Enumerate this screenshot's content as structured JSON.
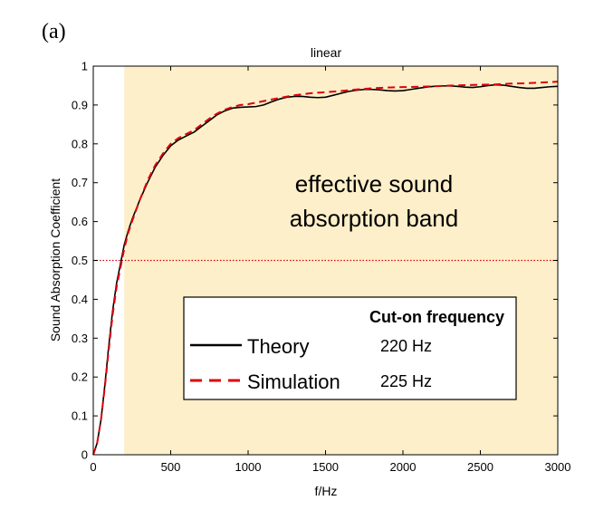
{
  "panel_label": "(a)",
  "chart_data": {
    "type": "line",
    "title": "linear",
    "xlabel": "f/Hz",
    "ylabel": "Sound Absorption Coefficient",
    "xlim": [
      0,
      3000
    ],
    "ylim": [
      0,
      1
    ],
    "xticks": [
      0,
      500,
      1000,
      1500,
      2000,
      2500,
      3000
    ],
    "yticks": [
      0,
      0.1,
      0.2,
      0.3,
      0.4,
      0.5,
      0.6,
      0.7,
      0.8,
      0.9,
      1
    ],
    "grid": false,
    "shaded_region": {
      "x_start": 200,
      "x_end": 3000,
      "color": "#fdefc9"
    },
    "threshold": {
      "y": 0.5,
      "color": "#e0000c",
      "style": "dotted"
    },
    "annotation": {
      "line1": "effective sound",
      "line2": "absorption band"
    },
    "legend": {
      "title": "Cut-on frequency",
      "placement": "lower-right"
    },
    "series": [
      {
        "name": "Theory",
        "cutoff": "220 Hz",
        "color": "#000000",
        "style": "solid",
        "x": [
          0,
          25,
          50,
          75,
          100,
          125,
          150,
          175,
          200,
          225,
          250,
          300,
          350,
          400,
          450,
          500,
          550,
          600,
          650,
          700,
          750,
          800,
          850,
          900,
          950,
          1000,
          1050,
          1100,
          1150,
          1200,
          1250,
          1300,
          1350,
          1400,
          1450,
          1500,
          1550,
          1600,
          1650,
          1700,
          1750,
          1800,
          1850,
          1900,
          1950,
          2000,
          2050,
          2100,
          2150,
          2200,
          2250,
          2300,
          2350,
          2400,
          2450,
          2500,
          2550,
          2600,
          2650,
          2700,
          2750,
          2800,
          2850,
          2900,
          2950,
          3000
        ],
        "y": [
          0,
          0.03,
          0.09,
          0.18,
          0.28,
          0.37,
          0.44,
          0.49,
          0.54,
          0.575,
          0.605,
          0.655,
          0.7,
          0.74,
          0.77,
          0.795,
          0.81,
          0.82,
          0.83,
          0.845,
          0.86,
          0.875,
          0.885,
          0.892,
          0.894,
          0.895,
          0.896,
          0.9,
          0.908,
          0.915,
          0.92,
          0.922,
          0.922,
          0.92,
          0.919,
          0.92,
          0.925,
          0.93,
          0.935,
          0.938,
          0.94,
          0.94,
          0.939,
          0.937,
          0.936,
          0.937,
          0.94,
          0.943,
          0.946,
          0.948,
          0.949,
          0.949,
          0.948,
          0.946,
          0.945,
          0.947,
          0.95,
          0.952,
          0.951,
          0.948,
          0.945,
          0.943,
          0.943,
          0.945,
          0.947,
          0.948
        ]
      },
      {
        "name": "Simulation",
        "cutoff": "225 Hz",
        "color": "#e0000c",
        "style": "dashed",
        "x": [
          0,
          25,
          50,
          75,
          100,
          125,
          150,
          175,
          200,
          225,
          250,
          300,
          350,
          400,
          450,
          500,
          550,
          600,
          650,
          700,
          750,
          800,
          850,
          900,
          950,
          1000,
          1100,
          1200,
          1300,
          1400,
          1500,
          1600,
          1700,
          1800,
          1900,
          2000,
          2100,
          2200,
          2300,
          2400,
          2500,
          2600,
          2700,
          2800,
          2900,
          3000
        ],
        "y": [
          0,
          0.03,
          0.09,
          0.175,
          0.27,
          0.36,
          0.43,
          0.48,
          0.53,
          0.57,
          0.6,
          0.655,
          0.705,
          0.745,
          0.775,
          0.8,
          0.815,
          0.825,
          0.835,
          0.85,
          0.865,
          0.878,
          0.888,
          0.895,
          0.9,
          0.902,
          0.91,
          0.918,
          0.925,
          0.93,
          0.933,
          0.936,
          0.94,
          0.943,
          0.945,
          0.946,
          0.947,
          0.948,
          0.95,
          0.951,
          0.952,
          0.953,
          0.955,
          0.956,
          0.958,
          0.96
        ]
      }
    ]
  }
}
